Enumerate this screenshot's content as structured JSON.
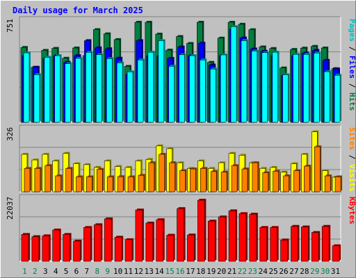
{
  "chart_data": {
    "type": "bar",
    "title": "Daily usage for March 2025",
    "colors": {
      "hits": "#008040",
      "files": "#0000ff",
      "pages": "#00ffff",
      "visits": "#ffff00",
      "sites": "#ff8000",
      "kbytes": "#ff0000"
    },
    "categories": [
      "1",
      "2",
      "3",
      "4",
      "5",
      "6",
      "7",
      "8",
      "9",
      "10",
      "11",
      "12",
      "13",
      "14",
      "15",
      "16",
      "17",
      "18",
      "19",
      "20",
      "21",
      "22",
      "23",
      "24",
      "25",
      "26",
      "27",
      "28",
      "29",
      "30",
      "31"
    ],
    "weekend_days": [
      "1",
      "2",
      "8",
      "9",
      "15",
      "16",
      "22",
      "23",
      "29",
      "30"
    ],
    "panels": [
      {
        "id": "top",
        "axis_max_label": "751",
        "ymax": 751,
        "legend": [
          {
            "text": "Pages",
            "color": "#00c0c0"
          },
          {
            "text": " / ",
            "color": "#000000"
          },
          {
            "text": "Files",
            "color": "#0000ff"
          },
          {
            "text": " / ",
            "color": "#000000"
          },
          {
            "text": "Hits",
            "color": "#008040"
          }
        ],
        "series": [
          {
            "name": "Hits",
            "values": [
              562,
              413,
              540,
              555,
              481,
              558,
              501,
              696,
              664,
              621,
              420,
              751,
              751,
              662,
              542,
              644,
              592,
              751,
              450,
              632,
              751,
              736,
              695,
              566,
              554,
              408,
              547,
              557,
              570,
              558,
              403
            ]
          },
          {
            "name": "Files",
            "values": [
              500,
              413,
              480,
              500,
              450,
              500,
              613,
              559,
              552,
              481,
              360,
              613,
              500,
              500,
              480,
              565,
              500,
              594,
              430,
              500,
              700,
              633,
              550,
              533,
              500,
              350,
              500,
              520,
              540,
              465,
              400
            ]
          },
          {
            "name": "Pages",
            "values": [
              521,
              358,
              488,
              500,
              440,
              480,
              525,
              508,
              478,
              446,
              379,
              468,
              526,
              613,
              421,
              507,
              500,
              468,
              400,
              506,
              718,
              613,
              535,
              523,
              526,
              357,
              510,
              510,
              520,
              380,
              353
            ]
          }
        ]
      },
      {
        "id": "middle",
        "axis_max_label": "326",
        "ymax": 326,
        "legend": [
          {
            "text": "Sites",
            "color": "#ff8000"
          },
          {
            "text": " / ",
            "color": "#000000"
          },
          {
            "text": "Visits",
            "color": "#ffff00"
          }
        ],
        "series": [
          {
            "name": "Visits",
            "values": [
              200,
              170,
              200,
              165,
              205,
              150,
              145,
              130,
              165,
              135,
              130,
              165,
              173,
              245,
              230,
              155,
              125,
              165,
              125,
              155,
              205,
              195,
              155,
              125,
              130,
              105,
              150,
              200,
              320,
              113,
              78
            ]
          },
          {
            "name": "Sites",
            "values": [
              125,
              125,
              140,
              85,
              125,
              80,
              80,
              120,
              80,
              81,
              80,
              88,
              155,
              200,
              155,
              113,
              122,
              125,
              108,
              105,
              140,
              122,
              155,
              102,
              110,
              85,
              113,
              137,
              240,
              85,
              80
            ]
          }
        ]
      },
      {
        "id": "bottom",
        "axis_max_label": "22037",
        "ymax": 22037,
        "legend": [
          {
            "text": "KBytes",
            "color": "#ff0000"
          }
        ],
        "series": [
          {
            "name": "KBytes",
            "values": [
              9700,
              8900,
              9200,
              11300,
              9700,
              7300,
              12200,
              13200,
              15300,
              8700,
              7800,
              18500,
              13800,
              15000,
              9400,
              19000,
              9500,
              22037,
              14500,
              16000,
              18200,
              17200,
              17000,
              12200,
              12200,
              7700,
              12600,
              12400,
              10400,
              12600,
              5600
            ]
          }
        ]
      }
    ]
  }
}
